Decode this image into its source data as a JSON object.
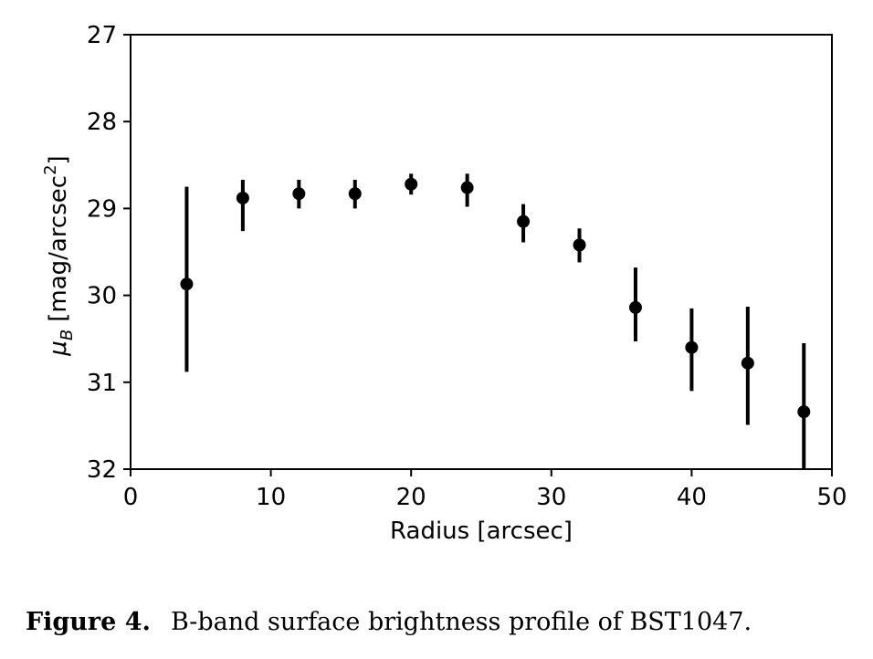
{
  "chart_data": {
    "type": "scatter",
    "title": "",
    "xlabel": "Radius [arcsec]",
    "ylabel_parts": {
      "mu": "μ",
      "subscript": "B",
      "units_before": "[mag/arcsec",
      "superscript": "2",
      "units_after": "]"
    },
    "xlim": [
      0,
      50
    ],
    "ylim": [
      32,
      27
    ],
    "y_inverted": true,
    "xticks": [
      "0",
      "10",
      "20",
      "30",
      "40",
      "50"
    ],
    "yticks": [
      "27",
      "28",
      "29",
      "30",
      "31",
      "32"
    ],
    "grid": false,
    "series": [
      {
        "name": "B-band surface brightness",
        "color": "#000000",
        "points": [
          {
            "x": 4,
            "y": 29.87,
            "err_low": 28.75,
            "err_high": 30.88
          },
          {
            "x": 8,
            "y": 28.88,
            "err_low": 28.67,
            "err_high": 29.26
          },
          {
            "x": 12,
            "y": 28.83,
            "err_low": 28.67,
            "err_high": 29.0
          },
          {
            "x": 16,
            "y": 28.83,
            "err_low": 28.67,
            "err_high": 29.0
          },
          {
            "x": 20,
            "y": 28.72,
            "err_low": 28.6,
            "err_high": 28.84
          },
          {
            "x": 24,
            "y": 28.76,
            "err_low": 28.6,
            "err_high": 28.98
          },
          {
            "x": 28,
            "y": 29.15,
            "err_low": 28.95,
            "err_high": 29.39
          },
          {
            "x": 32,
            "y": 29.42,
            "err_low": 29.23,
            "err_high": 29.62
          },
          {
            "x": 36,
            "y": 30.14,
            "err_low": 29.68,
            "err_high": 30.53
          },
          {
            "x": 40,
            "y": 30.6,
            "err_low": 30.15,
            "err_high": 31.1
          },
          {
            "x": 44,
            "y": 30.78,
            "err_low": 30.13,
            "err_high": 31.49
          },
          {
            "x": 48,
            "y": 31.34,
            "err_low": 30.55,
            "err_high": 32.0
          }
        ]
      }
    ]
  },
  "caption": {
    "label": "Figure 4.",
    "text": "B-band surface brightness profile of BST1047."
  }
}
